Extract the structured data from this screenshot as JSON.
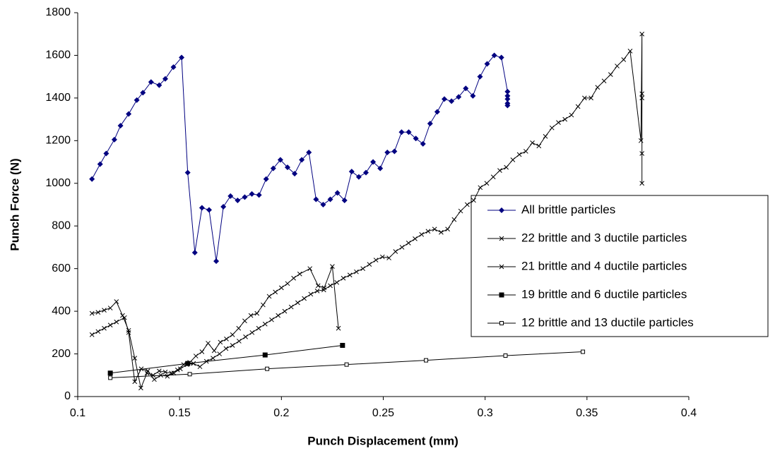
{
  "chart_data": {
    "type": "line",
    "x_label": "Punch Displacement (mm)",
    "y_label": "Punch Force (N)",
    "xlim": [
      0.1,
      0.4
    ],
    "xticks": [
      0.1,
      0.15,
      0.2,
      0.25,
      0.3,
      0.35,
      0.4
    ],
    "ylim": [
      0,
      1800
    ],
    "yticks": [
      0,
      200,
      400,
      600,
      800,
      1000,
      1200,
      1400,
      1600,
      1800
    ],
    "grid": false,
    "legend": "right",
    "series": [
      {
        "name": "All brittle particles",
        "color": "#000080",
        "marker": "diamond",
        "x": [
          0.107,
          0.111,
          0.114,
          0.118,
          0.121,
          0.125,
          0.129,
          0.132,
          0.136,
          0.14,
          0.143,
          0.147,
          0.151,
          0.154,
          0.1575,
          0.161,
          0.1645,
          0.168,
          0.1715,
          0.175,
          0.1785,
          0.182,
          0.1855,
          0.189,
          0.1925,
          0.196,
          0.1995,
          0.203,
          0.2065,
          0.21,
          0.2135,
          0.217,
          0.2205,
          0.224,
          0.2275,
          0.231,
          0.2345,
          0.238,
          0.2415,
          0.245,
          0.2485,
          0.252,
          0.2555,
          0.259,
          0.2625,
          0.266,
          0.2695,
          0.273,
          0.2765,
          0.28,
          0.2835,
          0.287,
          0.2905,
          0.294,
          0.2975,
          0.301,
          0.3045,
          0.308,
          0.311,
          0.311,
          0.311,
          0.311,
          0.311
        ],
        "values": [
          1020,
          1090,
          1140,
          1205,
          1270,
          1325,
          1390,
          1425,
          1475,
          1460,
          1490,
          1545,
          1590,
          1050,
          675,
          885,
          875,
          635,
          890,
          940,
          920,
          935,
          950,
          945,
          1020,
          1070,
          1110,
          1075,
          1045,
          1110,
          1145,
          925,
          900,
          925,
          955,
          920,
          1055,
          1030,
          1050,
          1100,
          1070,
          1145,
          1150,
          1240,
          1240,
          1210,
          1185,
          1280,
          1335,
          1395,
          1385,
          1405,
          1445,
          1410,
          1500,
          1560,
          1600,
          1590,
          1430,
          1410,
          1395,
          1375,
          1365
        ]
      },
      {
        "name": "22 brittle and 3 ductile particles",
        "color": "#000000",
        "marker": "cross",
        "x": [
          0.107,
          0.11,
          0.113,
          0.116,
          0.119,
          0.123,
          0.125,
          0.128,
          0.1312,
          0.1344,
          0.1376,
          0.1408,
          0.144,
          0.1472,
          0.1504,
          0.1536,
          0.1568,
          0.16,
          0.1632,
          0.1664,
          0.1696,
          0.1728,
          0.176,
          0.1792,
          0.1824,
          0.1856,
          0.1888,
          0.192,
          0.1952,
          0.1984,
          0.2016,
          0.2048,
          0.208,
          0.2112,
          0.2144,
          0.2176,
          0.2208,
          0.224,
          0.2272,
          0.2304,
          0.2336,
          0.2368,
          0.24,
          0.2432,
          0.2464,
          0.2496,
          0.2528,
          0.256,
          0.2592,
          0.2624,
          0.2656,
          0.2688,
          0.272,
          0.2752,
          0.2784,
          0.2816,
          0.2848,
          0.288,
          0.2912,
          0.2944,
          0.2976,
          0.3008,
          0.304,
          0.3072,
          0.3104,
          0.3136,
          0.3168,
          0.32,
          0.3232,
          0.3264,
          0.3296,
          0.3328,
          0.336,
          0.3392,
          0.3424,
          0.3456,
          0.3488,
          0.352,
          0.3552,
          0.3584,
          0.3616,
          0.3648,
          0.368,
          0.3712,
          0.3765,
          0.377,
          0.377,
          0.377,
          0.377,
          0.377
        ],
        "values": [
          290,
          305,
          320,
          335,
          350,
          370,
          300,
          70,
          130,
          120,
          80,
          100,
          95,
          110,
          130,
          150,
          155,
          140,
          165,
          180,
          200,
          225,
          240,
          260,
          280,
          300,
          320,
          340,
          360,
          380,
          400,
          420,
          440,
          460,
          480,
          495,
          500,
          520,
          535,
          555,
          570,
          585,
          600,
          620,
          640,
          655,
          650,
          680,
          700,
          720,
          740,
          760,
          775,
          785,
          770,
          785,
          830,
          870,
          900,
          920,
          980,
          1000,
          1030,
          1060,
          1075,
          1110,
          1135,
          1150,
          1190,
          1175,
          1220,
          1260,
          1285,
          1300,
          1320,
          1360,
          1400,
          1400,
          1450,
          1480,
          1510,
          1550,
          1580,
          1620,
          1200,
          1700,
          1000,
          1420,
          1140,
          1400
        ]
      },
      {
        "name": "21 brittle and 4 ductile particles",
        "color": "#000000",
        "marker": "cross",
        "x": [
          0.107,
          0.11,
          0.113,
          0.116,
          0.119,
          0.122,
          0.125,
          0.128,
          0.131,
          0.134,
          0.137,
          0.14,
          0.143,
          0.146,
          0.149,
          0.152,
          0.155,
          0.158,
          0.161,
          0.164,
          0.167,
          0.17,
          0.173,
          0.176,
          0.179,
          0.182,
          0.185,
          0.188,
          0.191,
          0.194,
          0.197,
          0.2,
          0.203,
          0.206,
          0.209,
          0.214,
          0.218,
          0.221,
          0.225,
          0.228
        ],
        "values": [
          390,
          395,
          405,
          415,
          445,
          380,
          310,
          180,
          40,
          110,
          100,
          120,
          115,
          110,
          125,
          150,
          160,
          190,
          210,
          250,
          215,
          255,
          270,
          290,
          320,
          355,
          380,
          390,
          430,
          470,
          490,
          510,
          530,
          555,
          575,
          600,
          520,
          510,
          610,
          320
        ]
      },
      {
        "name": "19 brittle and 6 ductile particles",
        "color": "#000000",
        "marker": "square",
        "x": [
          0.116,
          0.154,
          0.192,
          0.23
        ],
        "values": [
          110,
          155,
          195,
          240
        ]
      },
      {
        "name": "12 brittle and 13 ductile particles",
        "color": "#000000",
        "marker": "open-square",
        "x": [
          0.116,
          0.155,
          0.193,
          0.232,
          0.271,
          0.31,
          0.348
        ],
        "values": [
          88,
          105,
          130,
          150,
          170,
          192,
          210
        ]
      }
    ]
  }
}
